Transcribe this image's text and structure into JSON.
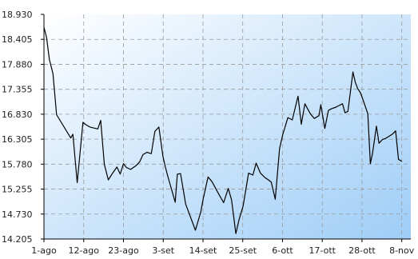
{
  "chart_data": {
    "type": "area",
    "title": "",
    "xlabel": "",
    "ylabel": "",
    "ylim": [
      14.205,
      18.93
    ],
    "y_ticks": [
      "18.930",
      "18.405",
      "17.880",
      "17.355",
      "16.830",
      "16.305",
      "15.780",
      "15.255",
      "14.730",
      "14.205"
    ],
    "y_tick_values": [
      18.93,
      18.405,
      17.88,
      17.355,
      16.83,
      16.305,
      15.78,
      15.255,
      14.73,
      14.205
    ],
    "x_ticks": [
      "1-ago",
      "12-ago",
      "23-ago",
      "3-set",
      "14-set",
      "25-set",
      "6-ott",
      "17-ott",
      "28-ott",
      "8-nov"
    ],
    "x_tick_days": [
      0,
      11,
      22,
      33,
      44,
      55,
      66,
      77,
      88,
      99
    ],
    "x_unit": "days",
    "x_start": "1-ago",
    "grid": true,
    "gradient": {
      "from": "#ffffff",
      "to": "#9ecdf7",
      "direction": "top-left to bottom-right"
    },
    "line_color": "#000000",
    "series": [
      {
        "x": [
          0,
          0.7,
          1.5,
          2.5,
          3.5,
          7.4,
          8.0,
          9.2,
          10.8,
          11.6,
          12.7,
          14.9,
          15.7,
          16.7,
          17.8,
          19.0,
          20.2,
          21.1,
          22.0,
          22.8,
          24.0,
          25.5,
          26.5,
          27.4,
          28.5,
          29.7,
          30.7,
          31.8,
          32.9,
          33.6,
          34.2,
          36.3,
          36.9,
          37.8,
          39.2,
          41.9,
          43.4,
          44.0,
          45.4,
          46.5,
          48.2,
          49.7,
          51.0,
          51.9,
          53.1,
          54.0,
          55.1,
          56.6,
          57.8,
          58.7,
          59.9,
          61.1,
          62.1,
          62.9,
          64.0,
          65.2,
          66.1,
          67.5,
          68.7,
          70.3,
          71.2,
          72.2,
          72.9,
          73.8,
          74.8,
          76.1,
          76.6,
          77.7,
          78.7,
          79.4,
          80.8,
          82.6,
          83.3,
          84.1,
          85.5,
          86.1,
          86.8,
          87.5,
          88.2,
          89.6,
          90.3,
          90.9,
          92.0,
          92.7,
          93.7,
          94.5,
          96.4,
          97.3,
          98.1,
          99.0
        ],
        "values": [
          18.66,
          18.45,
          17.98,
          17.68,
          16.82,
          16.33,
          16.41,
          15.39,
          16.66,
          16.61,
          16.56,
          16.52,
          16.7,
          15.78,
          15.45,
          15.59,
          15.72,
          15.57,
          15.79,
          15.71,
          15.67,
          15.75,
          15.83,
          15.98,
          16.03,
          16.0,
          16.47,
          16.56,
          15.95,
          15.72,
          15.54,
          14.98,
          15.57,
          15.58,
          14.94,
          14.39,
          14.78,
          15.03,
          15.51,
          15.41,
          15.17,
          14.97,
          15.27,
          15.03,
          14.32,
          14.62,
          14.9,
          15.59,
          15.55,
          15.8,
          15.59,
          15.5,
          15.45,
          15.4,
          15.04,
          16.11,
          16.41,
          16.76,
          16.71,
          17.21,
          16.62,
          17.05,
          16.95,
          16.83,
          16.74,
          16.8,
          17.03,
          16.53,
          16.91,
          16.94,
          16.98,
          17.05,
          16.86,
          16.89,
          17.72,
          17.51,
          17.37,
          17.29,
          17.15,
          16.84,
          15.79,
          16.01,
          16.58,
          16.22,
          16.3,
          16.32,
          16.41,
          16.48,
          15.88,
          15.84
        ]
      }
    ]
  }
}
